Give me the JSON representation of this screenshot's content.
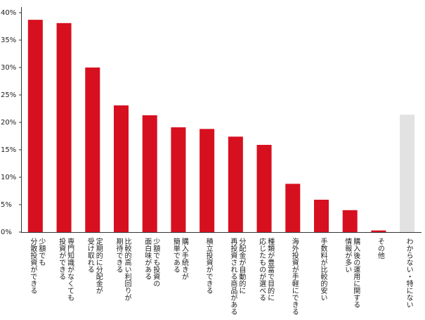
{
  "chart_data": {
    "type": "bar",
    "categories": [
      [
        "少額でも",
        "分散投資ができる"
      ],
      [
        "専門知識がなくても",
        "投資ができる"
      ],
      [
        "定期的に分配金が",
        "受け取れる"
      ],
      [
        "比較的高い利回りが",
        "期待できる"
      ],
      [
        "少額でも投資の",
        "面白味がある"
      ],
      [
        "購入手続きが",
        "簡単である"
      ],
      [
        "積立投資ができる"
      ],
      [
        "分配金が自動的に",
        "再投資される商品がある"
      ],
      [
        "種類が豊富で目的に",
        "応じたものが選べる"
      ],
      [
        "海外投資が手軽にできる"
      ],
      [
        "手数料が比較的安い"
      ],
      [
        "購入後の運用に関する",
        "情報が多い"
      ],
      [
        "その他"
      ],
      [
        "わからない・特にない"
      ]
    ],
    "values": [
      38.7,
      38.1,
      30.0,
      23.1,
      21.3,
      19.1,
      18.8,
      17.4,
      15.9,
      8.8,
      5.9,
      4.0,
      0.3,
      21.4
    ],
    "colors": [
      "#d7101f",
      "#d7101f",
      "#d7101f",
      "#d7101f",
      "#d7101f",
      "#d7101f",
      "#d7101f",
      "#d7101f",
      "#d7101f",
      "#d7101f",
      "#d7101f",
      "#d7101f",
      "#d7101f",
      "#e2e2e2"
    ],
    "ylim": [
      0,
      40
    ],
    "yticks": [
      {
        "value": 0,
        "label": "0%"
      },
      {
        "value": 5,
        "label": "5%"
      },
      {
        "value": 10,
        "label": "10%"
      },
      {
        "value": 15,
        "label": "15%"
      },
      {
        "value": 20,
        "label": "20%"
      },
      {
        "value": 25,
        "label": "25%"
      },
      {
        "value": 30,
        "label": "30%"
      },
      {
        "value": 35,
        "label": "35%"
      },
      {
        "value": 40,
        "label": "40%"
      }
    ]
  }
}
